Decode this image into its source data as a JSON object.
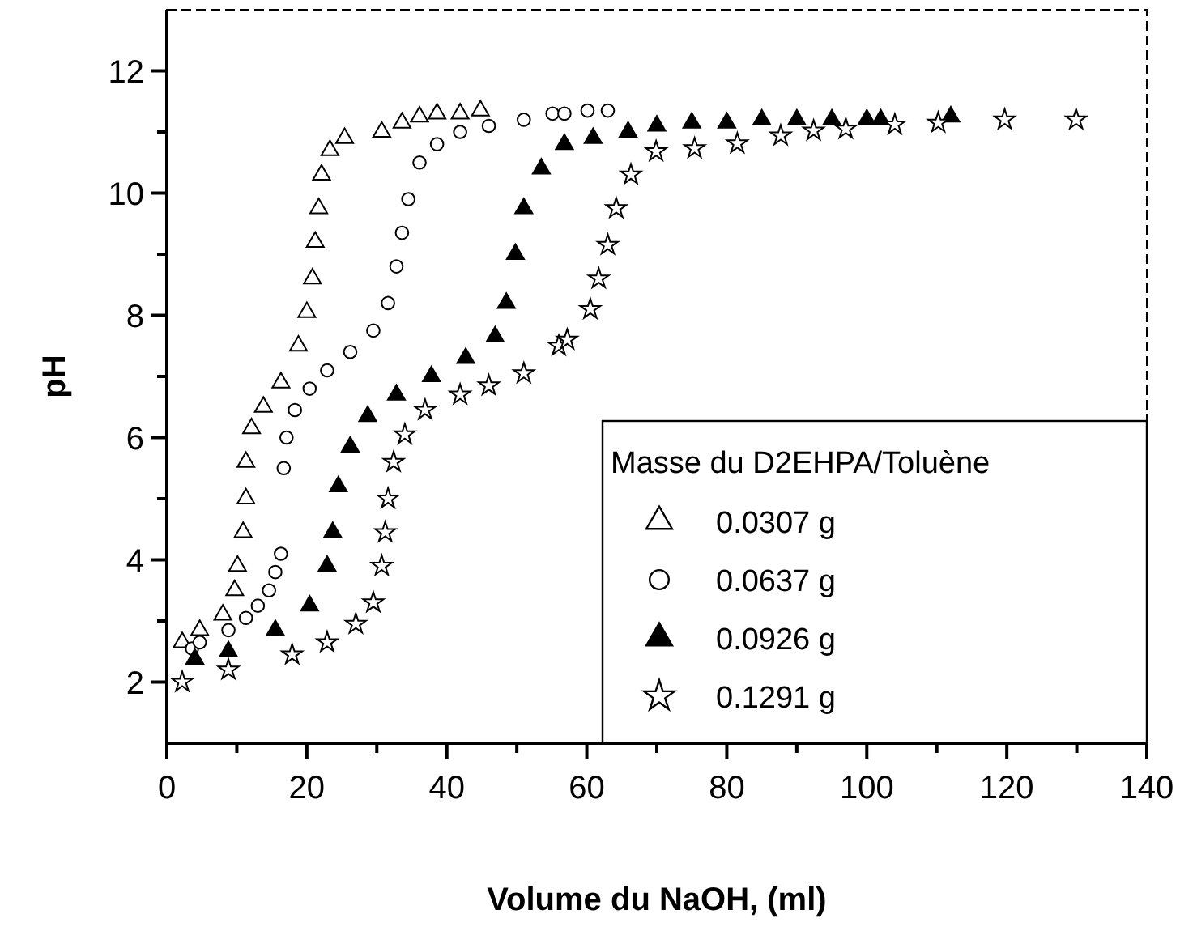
{
  "chart_data": {
    "type": "scatter",
    "xlabel": "Volume du NaOH, (ml)",
    "ylabel": "pH",
    "legend_title": "Masse du D2EHPA/Toluène",
    "legend": "right",
    "grid": false,
    "xlim": [
      0,
      140
    ],
    "ylim": [
      1,
      13
    ],
    "xticks": [
      0,
      {
        "value": 10,
        "label": null
      },
      20,
      {
        "value": 30,
        "label": null
      },
      40,
      {
        "value": 50,
        "label": null
      },
      60,
      {
        "value": 70,
        "label": null
      },
      80,
      {
        "value": 90,
        "label": null
      },
      100,
      {
        "value": 110,
        "label": null
      },
      120,
      {
        "value": 130,
        "label": null
      },
      140
    ],
    "yticks": [
      2,
      {
        "value": 3,
        "label": null
      },
      4,
      {
        "value": 5,
        "label": null
      },
      6,
      {
        "value": 7,
        "label": null
      },
      8,
      {
        "value": 9,
        "label": null
      },
      10,
      {
        "value": 11,
        "label": null
      },
      12
    ],
    "series": [
      {
        "name": "0.0307 g",
        "color": "#000000",
        "marker": "triangle",
        "x": [
          2.2,
          4.7,
          8,
          9.7,
          10.1,
          10.9,
          11.3,
          11.3,
          12.1,
          13.8,
          16.3,
          18.8,
          20,
          20.8,
          21.2,
          21.7,
          22.1,
          23.3,
          25.4,
          30.7,
          33.6,
          36.1,
          38.6,
          41.9,
          44.8
        ],
        "values": [
          2.65,
          2.85,
          3.1,
          3.5,
          3.9,
          4.45,
          5.0,
          5.6,
          6.15,
          6.5,
          6.9,
          7.5,
          8.05,
          8.6,
          9.2,
          9.75,
          10.3,
          10.7,
          10.9,
          11.0,
          11.15,
          11.25,
          11.3,
          11.3,
          11.35
        ]
      },
      {
        "name": "0.0637 g",
        "color": "#000000",
        "marker": "circle",
        "x": [
          3.6,
          4.7,
          8.8,
          11.3,
          13,
          14.6,
          15.5,
          16.3,
          16.7,
          17.1,
          18.3,
          20.4,
          22.9,
          26.2,
          29.5,
          31.6,
          32.8,
          33.6,
          34.5,
          36.1,
          38.6,
          41.9,
          46,
          51,
          55.1,
          56.8,
          60.1,
          63
        ],
        "values": [
          2.55,
          2.65,
          2.85,
          3.05,
          3.25,
          3.5,
          3.8,
          4.1,
          5.5,
          6.0,
          6.45,
          6.8,
          7.1,
          7.4,
          7.75,
          8.2,
          8.8,
          9.35,
          9.9,
          10.5,
          10.8,
          11.0,
          11.1,
          11.2,
          11.3,
          11.3,
          11.35,
          11.35
        ]
      },
      {
        "name": "0.0926 g",
        "color": "#000000",
        "marker": "triangle",
        "x": [
          4.0,
          8.8,
          15.5,
          20.4,
          22.9,
          23.7,
          24.5,
          26.2,
          28.7,
          32.8,
          37.8,
          42.7,
          46.9,
          48.5,
          49.8,
          51,
          53.5,
          56.8,
          60.9,
          65.9,
          70,
          75,
          80,
          85,
          90,
          95,
          100,
          102,
          112
        ],
        "values": [
          2.38,
          2.5,
          2.85,
          3.25,
          3.9,
          4.45,
          5.2,
          5.85,
          6.35,
          6.7,
          7.0,
          7.3,
          7.65,
          8.2,
          9.0,
          9.75,
          10.4,
          10.8,
          10.9,
          11.0,
          11.1,
          11.15,
          11.15,
          11.2,
          11.2,
          11.2,
          11.2,
          11.2,
          11.25
        ]
      },
      {
        "name": "0.1291 g",
        "color": "#000000",
        "marker": "star",
        "x": [
          2.2,
          8.8,
          17.9,
          22.9,
          27,
          29.5,
          30.7,
          31.2,
          31.6,
          32.4,
          34,
          36.9,
          41.9,
          46,
          51,
          56,
          57.2,
          60.5,
          61.7,
          63,
          64.2,
          66.3,
          69.9,
          75.4,
          81.5,
          87.7,
          92.4,
          97,
          104,
          110.2,
          119.7,
          129.9
        ],
        "values": [
          2.0,
          2.2,
          2.45,
          2.65,
          2.95,
          3.3,
          3.9,
          4.45,
          5.0,
          5.6,
          6.05,
          6.45,
          6.7,
          6.85,
          7.05,
          7.5,
          7.6,
          8.1,
          8.6,
          9.15,
          9.75,
          10.3,
          10.68,
          10.73,
          10.81,
          10.94,
          11.02,
          11.05,
          11.12,
          11.15,
          11.2,
          11.2
        ]
      }
    ]
  }
}
